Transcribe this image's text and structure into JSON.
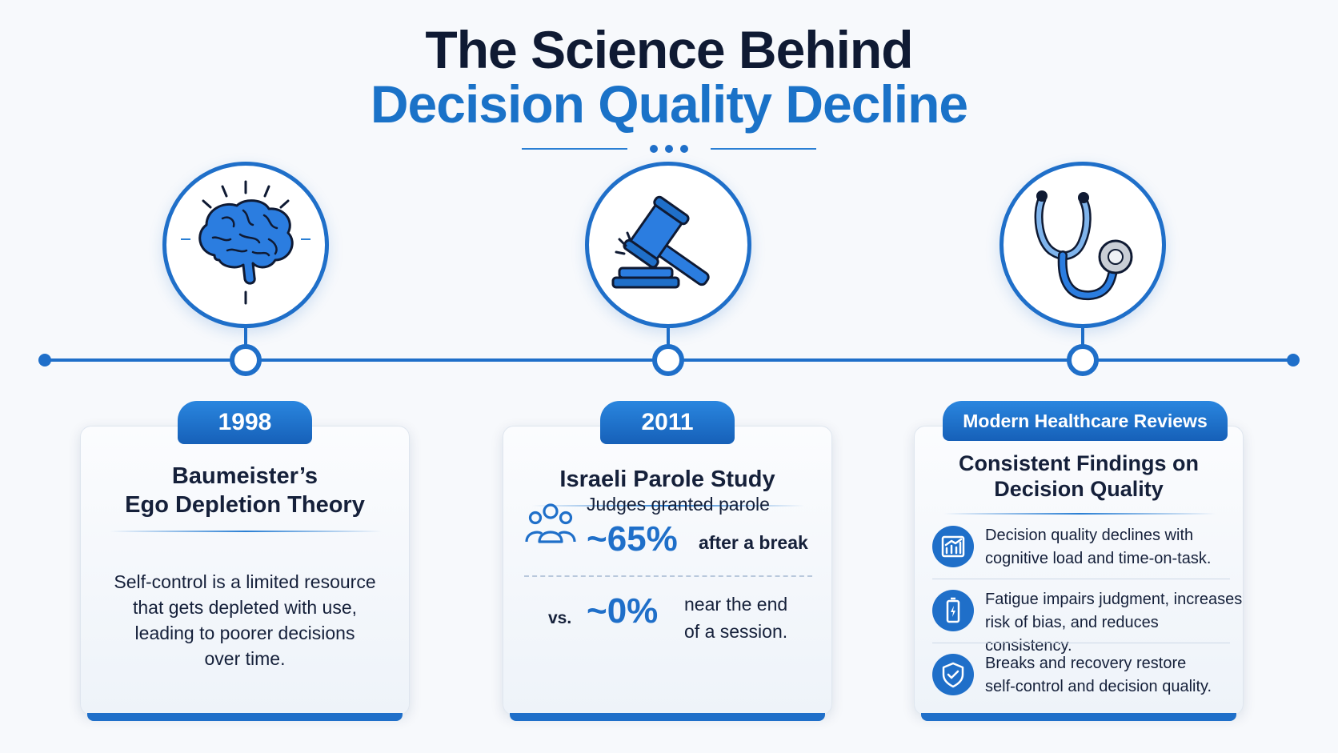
{
  "title": {
    "line1": "The Science Behind",
    "line2": "Decision Quality Decline"
  },
  "colors": {
    "accent": "#1f6fc9",
    "heading": "#0f1a33",
    "text": "#15203a"
  },
  "cards": [
    {
      "tab": "1998",
      "icon": "brain-icon",
      "title_line1": "Baumeister’s",
      "title_line2": "Ego Depletion Theory",
      "body_lines": [
        "Self-control is a limited resource",
        "that gets depleted with use,",
        "leading to poorer decisions",
        "over time."
      ]
    },
    {
      "tab": "2011",
      "icon": "gavel-icon",
      "title": "Israeli Parole Study",
      "people_icon": "people-group-icon",
      "stat_intro": "Judges granted parole",
      "stat1_value": "~65%",
      "stat1_label": "after a break",
      "vs_label": "vs.",
      "stat2_value": "~0%",
      "stat2_label_line1": "near the end",
      "stat2_label_line2": "of a session."
    },
    {
      "tab": "Modern Healthcare Reviews",
      "icon": "stethoscope-icon",
      "title_line1": "Consistent Findings on",
      "title_line2": "Decision Quality",
      "items": [
        {
          "icon": "chart-icon",
          "line1": "Decision quality declines with",
          "line2": "cognitive load and time-on-task."
        },
        {
          "icon": "battery-low-icon",
          "line1": "Fatigue impairs judgment, increases",
          "line2": "risk of bias, and reduces consistency."
        },
        {
          "icon": "shield-check-icon",
          "line1": "Breaks and recovery restore",
          "line2": "self-control and decision quality."
        }
      ]
    }
  ]
}
